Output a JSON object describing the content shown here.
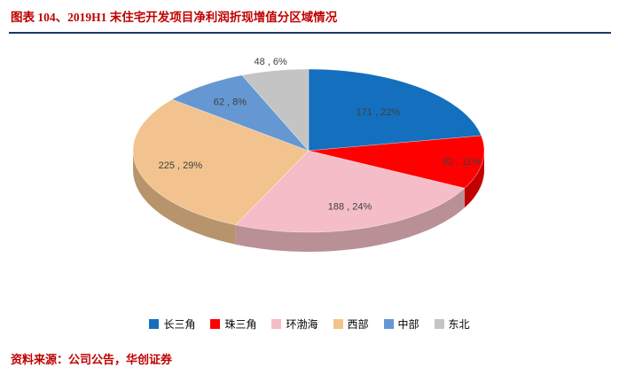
{
  "header": {
    "title": "图表 104、2019H1 末住宅开发项目净利润折现增值分区域情况"
  },
  "chart_data": {
    "type": "pie",
    "style": "3d",
    "title": "2019H1 末住宅开发项目净利润折现增值分区域情况",
    "categories": [
      "长三角",
      "珠三角",
      "环渤海",
      "西部",
      "中部",
      "东北"
    ],
    "values": [
      171,
      82,
      188,
      225,
      62,
      48
    ],
    "percents": [
      22,
      11,
      24,
      29,
      8,
      6
    ],
    "data_labels": [
      "171 , 22%",
      "82 , 11%",
      "188 , 24%",
      "225 , 29%",
      "62 , 8%",
      "48 , 6%"
    ],
    "colors": [
      "#1470BE",
      "#FF0000",
      "#F5BDC7",
      "#F2C38E",
      "#6598D2",
      "#C4C4C4"
    ],
    "legend_position": "bottom",
    "accent_colors": {
      "title_red": "#C00000",
      "rule_navy": "#1F3864",
      "label_gray": "#3F3F3F"
    }
  },
  "footer": {
    "source": "资料来源：公司公告，华创证券"
  }
}
